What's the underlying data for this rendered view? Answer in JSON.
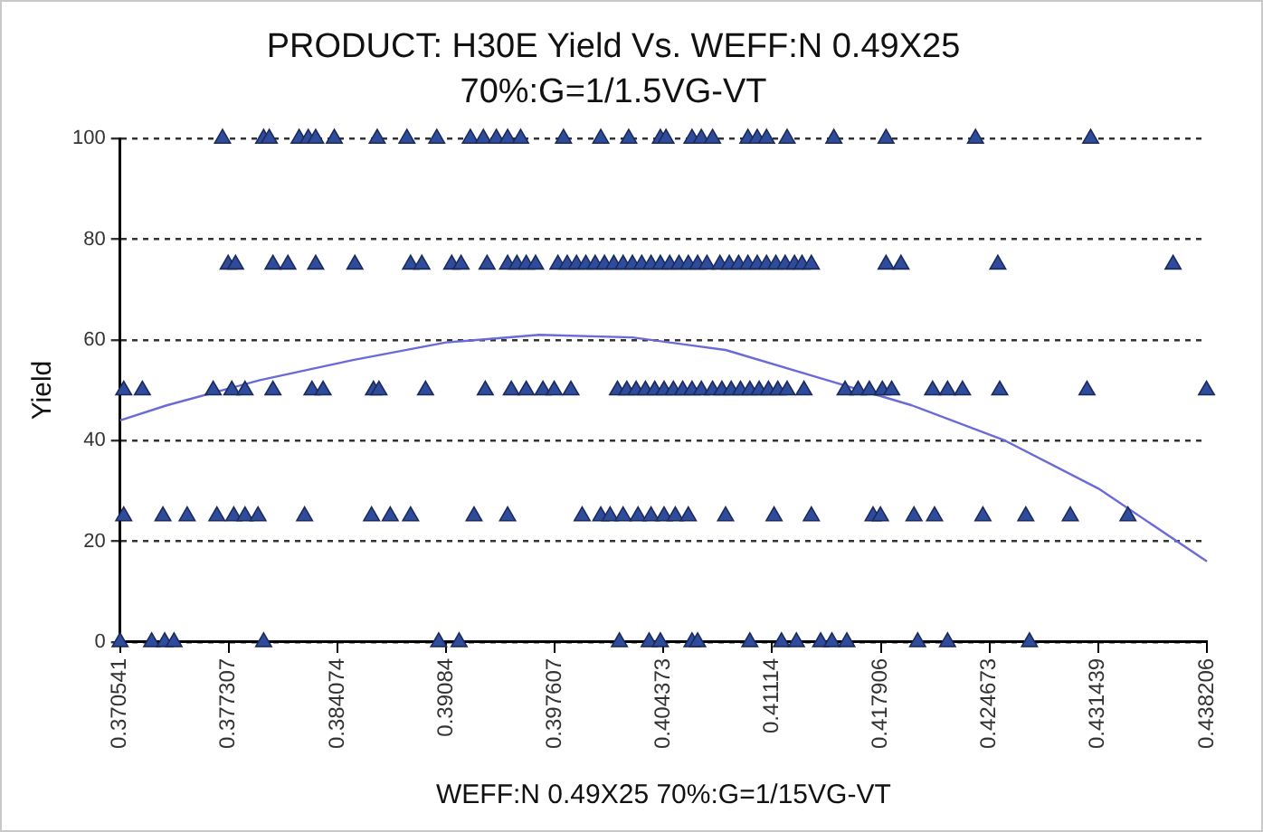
{
  "chart_data": {
    "type": "scatter",
    "title": "PRODUCT: H30E Yield Vs. WEFF:N 0.49X25",
    "subtitle": "70%:G=1/1.5VG-VT",
    "xlabel": "WEFF:N 0.49X25 70%:G=1/15VG-VT",
    "ylabel": "Yield",
    "xlim": [
      0.370541,
      0.438206
    ],
    "xticks": [
      0.370541,
      0.377307,
      0.384074,
      0.39084,
      0.397607,
      0.404373,
      0.41114,
      0.417906,
      0.424673,
      0.431439,
      0.438206
    ],
    "ylim": [
      0,
      100
    ],
    "yticks": [
      0,
      20,
      40,
      60,
      80,
      100
    ],
    "grid": "y",
    "legend": false,
    "marker": "triangle",
    "series": [
      {
        "color": "#2f4c9c",
        "x": [
          0.37692,
          0.37948,
          0.37983,
          0.38169,
          0.38226,
          0.38272,
          0.38388,
          0.38655,
          0.3884,
          0.39026,
          0.39235,
          0.39316,
          0.39397,
          0.39467,
          0.39548,
          0.39815,
          0.40047,
          0.40221,
          0.40418,
          0.40453,
          0.40615,
          0.40673,
          0.40743,
          0.40963,
          0.41021,
          0.41079,
          0.41207,
          0.41498,
          0.41823,
          0.4238,
          0.43097,
          0.37727,
          0.37773,
          0.38006,
          0.38099,
          0.38272,
          0.38516,
          0.38863,
          0.38933,
          0.39119,
          0.39177,
          0.39339,
          0.39467,
          0.39525,
          0.39583,
          0.39641,
          0.3978,
          0.39838,
          0.39896,
          0.39954,
          0.40012,
          0.4007,
          0.40128,
          0.40186,
          0.40244,
          0.40302,
          0.4036,
          0.40418,
          0.40476,
          0.40534,
          0.40592,
          0.4065,
          0.40708,
          0.40789,
          0.40847,
          0.40905,
          0.40963,
          0.41021,
          0.41079,
          0.41137,
          0.41195,
          0.41253,
          0.413,
          0.41358,
          0.41823,
          0.41916,
          0.42519,
          0.4361,
          0.37077,
          0.37193,
          0.37634,
          0.3775,
          0.37832,
          0.38006,
          0.38249,
          0.38318,
          0.38632,
          0.38666,
          0.38956,
          0.39328,
          0.3949,
          0.39583,
          0.39687,
          0.39757,
          0.39861,
          0.40151,
          0.40209,
          0.40267,
          0.40325,
          0.40383,
          0.40441,
          0.40499,
          0.40557,
          0.40615,
          0.40673,
          0.40743,
          0.40801,
          0.40859,
          0.40917,
          0.40975,
          0.41033,
          0.41091,
          0.41149,
          0.41207,
          0.41312,
          0.41568,
          0.41649,
          0.41719,
          0.418,
          0.41858,
          0.42113,
          0.42206,
          0.42299,
          0.42531,
          0.43074,
          0.43818,
          0.37077,
          0.37321,
          0.37472,
          0.37657,
          0.37762,
          0.37832,
          0.37913,
          0.38203,
          0.3862,
          0.38736,
          0.38863,
          0.39258,
          0.39467,
          0.39931,
          0.40047,
          0.40105,
          0.40186,
          0.40279,
          0.4036,
          0.40441,
          0.40511,
          0.40592,
          0.40824,
          0.41126,
          0.41358,
          0.41742,
          0.41788,
          0.41997,
          0.42125,
          0.42426,
          0.42693,
          0.4297,
          0.43329,
          0.370541,
          0.37251,
          0.37332,
          0.3739,
          0.37948,
          0.39038,
          0.39165,
          0.40163,
          0.40348,
          0.40418,
          0.40615,
          0.4065,
          0.40975,
          0.41172,
          0.41265,
          0.41416,
          0.41486,
          0.41579,
          0.4202,
          0.42206,
          0.42716
        ],
        "values": [
          100,
          100,
          100,
          100,
          100,
          100,
          100,
          100,
          100,
          100,
          100,
          100,
          100,
          100,
          100,
          100,
          100,
          100,
          100,
          100,
          100,
          100,
          100,
          100,
          100,
          100,
          100,
          100,
          100,
          100,
          100,
          75,
          75,
          75,
          75,
          75,
          75,
          75,
          75,
          75,
          75,
          75,
          75,
          75,
          75,
          75,
          75,
          75,
          75,
          75,
          75,
          75,
          75,
          75,
          75,
          75,
          75,
          75,
          75,
          75,
          75,
          75,
          75,
          75,
          75,
          75,
          75,
          75,
          75,
          75,
          75,
          75,
          75,
          75,
          75,
          75,
          75,
          75,
          50,
          50,
          50,
          50,
          50,
          50,
          50,
          50,
          50,
          50,
          50,
          50,
          50,
          50,
          50,
          50,
          50,
          50,
          50,
          50,
          50,
          50,
          50,
          50,
          50,
          50,
          50,
          50,
          50,
          50,
          50,
          50,
          50,
          50,
          50,
          50,
          50,
          50,
          50,
          50,
          50,
          50,
          50,
          50,
          50,
          50,
          50,
          50,
          25,
          25,
          25,
          25,
          25,
          25,
          25,
          25,
          25,
          25,
          25,
          25,
          25,
          25,
          25,
          25,
          25,
          25,
          25,
          25,
          25,
          25,
          25,
          25,
          25,
          25,
          25,
          25,
          25,
          25,
          25,
          25,
          25,
          0,
          0,
          0,
          0,
          0,
          0,
          0,
          0,
          0,
          0,
          0,
          0,
          0,
          0,
          0,
          0,
          0,
          0,
          0,
          0,
          0
        ]
      },
      {
        "type": "line",
        "color": "#6a6ad8",
        "marker": "none",
        "x": [
          0.370541,
          0.37344,
          0.37924,
          0.38504,
          0.39084,
          0.39664,
          0.40244,
          0.40824,
          0.41404,
          0.41984,
          0.42564,
          0.43144,
          0.438206
        ],
        "values": [
          44,
          47,
          52,
          56,
          59.5,
          61,
          60.5,
          58,
          52.5,
          47,
          40,
          30.5,
          16
        ]
      }
    ]
  }
}
